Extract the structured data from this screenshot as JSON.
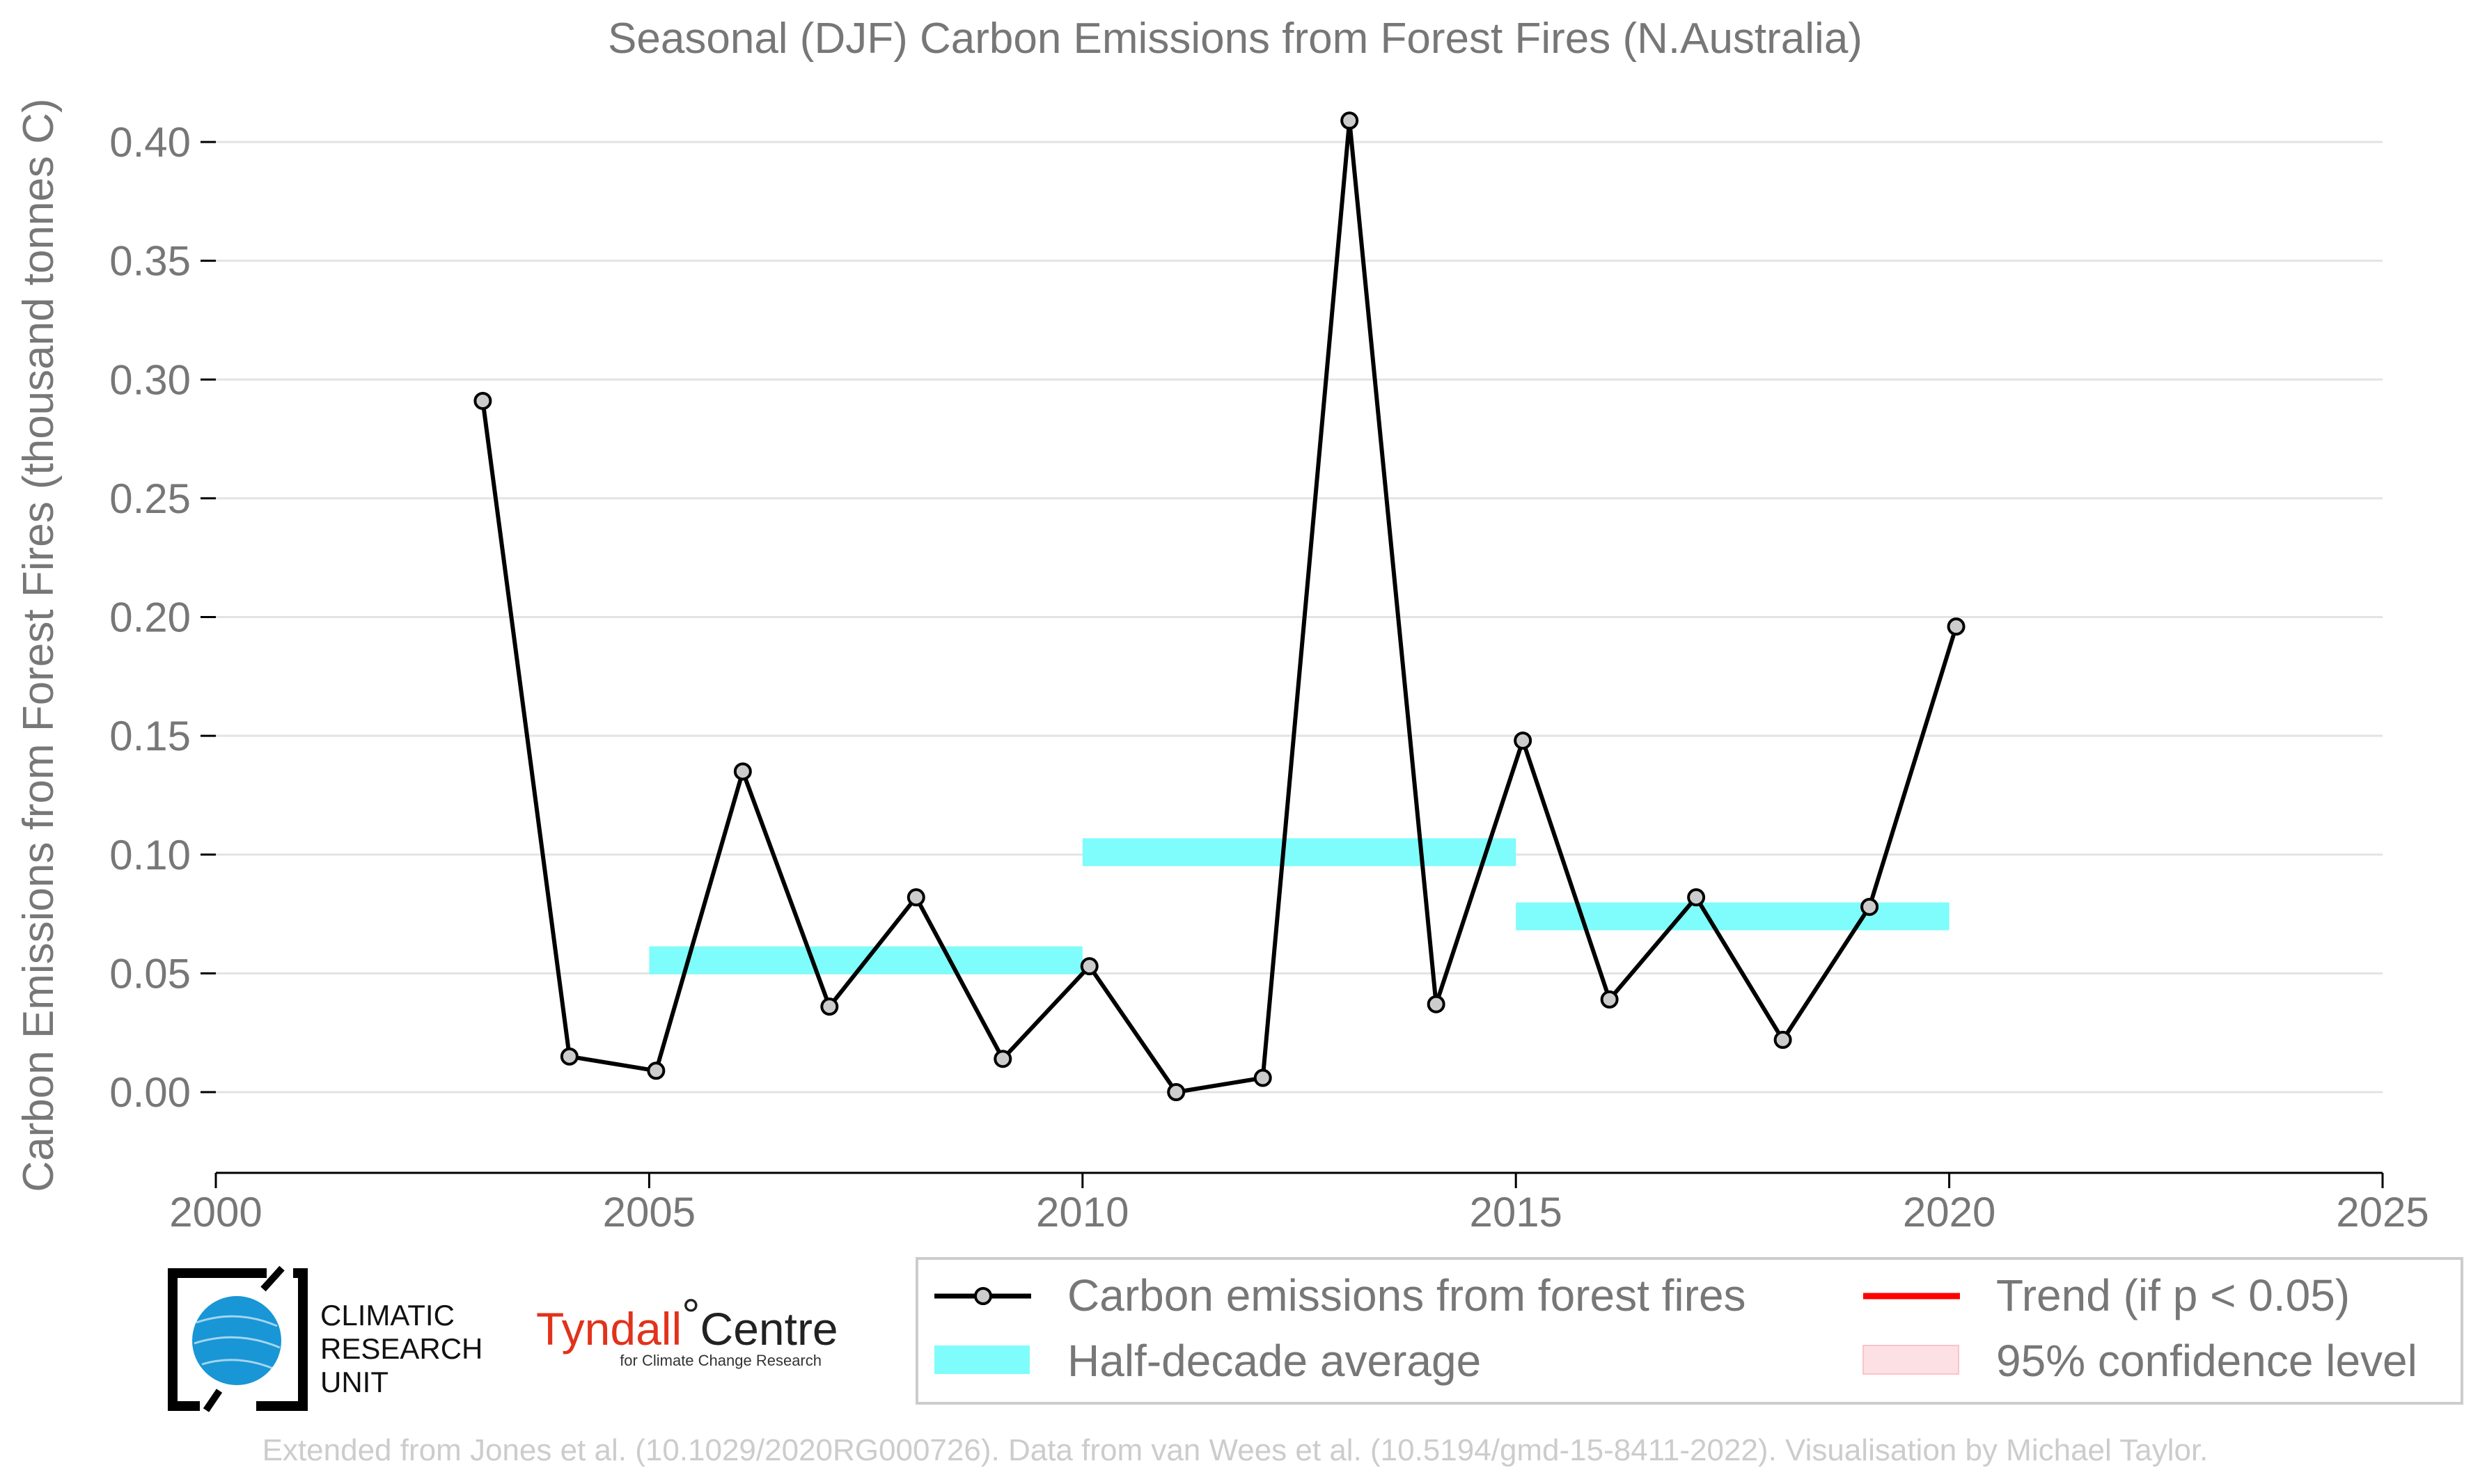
{
  "title": "Seasonal (DJF) Carbon Emissions from Forest Fires (N.Australia)",
  "footer": "Extended from Jones et al. (10.1029/2020RG000726). Data from van Wees et al. (10.5194/gmd-15-8411-2022). Visualisation by Michael Taylor.",
  "logos": {
    "cru_line1": "CLIMATIC",
    "cru_line2": "RESEARCH",
    "cru_line3": "UNIT",
    "tyndall_name": "Tyndall",
    "tyndall_degree": "°",
    "tyndall_centre": "Centre",
    "tyndall_sub": "for Climate Change Research"
  },
  "legend": {
    "emissions": "Carbon emissions from forest fires",
    "average": "Half-decade average",
    "trend": "Trend (if p < 0.05)",
    "confidence": "95% confidence level"
  },
  "colors": {
    "line": "#000000",
    "marker_fill": "#cccccc",
    "average": "#7ffcfc",
    "trend": "#ff0000",
    "confidence": "#fde0e3",
    "grid": "#e3e3e3",
    "text": "#777777"
  },
  "chart_data": {
    "type": "line",
    "title": "Seasonal (DJF) Carbon Emissions from Forest Fires (N.Australia)",
    "ylabel": "Carbon Emissions from Forest Fires (thousand tonnes C)",
    "xlabel": "",
    "xlim": [
      2000,
      2025
    ],
    "ylim": [
      -0.033,
      0.42
    ],
    "x_ticks": [
      2000,
      2005,
      2010,
      2015,
      2020,
      2025
    ],
    "y_ticks": [
      0.0,
      0.05,
      0.1,
      0.15,
      0.2,
      0.25,
      0.3,
      0.35,
      0.4
    ],
    "y_tick_labels": [
      "0.00",
      "0.05",
      "0.10",
      "0.15",
      "0.20",
      "0.25",
      "0.30",
      "0.35",
      "0.40"
    ],
    "grid": "horizontal",
    "legend_position": "bottom-right",
    "series": [
      {
        "name": "Carbon emissions from forest fires",
        "x": [
          2003.08,
          2004.08,
          2005.08,
          2006.08,
          2007.08,
          2008.08,
          2009.08,
          2010.08,
          2011.08,
          2012.08,
          2013.08,
          2014.08,
          2015.08,
          2016.08,
          2017.08,
          2018.08,
          2019.08,
          2020.08
        ],
        "values": [
          0.291,
          0.015,
          0.009,
          0.135,
          0.036,
          0.082,
          0.014,
          0.053,
          0.0,
          0.006,
          0.409,
          0.037,
          0.148,
          0.039,
          0.082,
          0.022,
          0.078,
          0.196
        ]
      }
    ],
    "half_decade_average": [
      {
        "x_start": 2005,
        "x_end": 2010,
        "value": 0.0555
      },
      {
        "x_start": 2010,
        "x_end": 2015,
        "value": 0.101
      },
      {
        "x_start": 2015,
        "x_end": 2020,
        "value": 0.074
      }
    ]
  }
}
